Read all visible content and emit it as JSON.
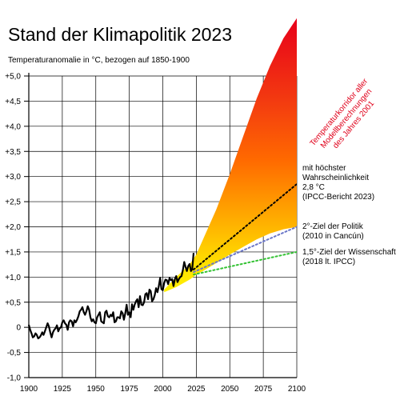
{
  "chart_data": {
    "type": "line",
    "title": "Stand der Klimapolitik 2023",
    "ylabel": "Temperaturanomalie in °C, bezogen auf 1850-1900",
    "xlabel": "",
    "xlim": [
      1900,
      2100
    ],
    "ylim": [
      -1.0,
      5.0
    ],
    "grid": true,
    "x_ticks": [
      1900,
      1925,
      1950,
      1975,
      2000,
      2025,
      2050,
      2075,
      2100
    ],
    "x_tick_labels": [
      "1900",
      "1925",
      "1950",
      "1975",
      "2000",
      "2025",
      "2050",
      "2075",
      "2100"
    ],
    "y_ticks": [
      -1.0,
      -0.5,
      0,
      0.5,
      1.0,
      1.5,
      2.0,
      2.5,
      3.0,
      3.5,
      4.0,
      4.5,
      5.0
    ],
    "y_tick_labels": [
      "-1,0",
      "-0,5",
      "0",
      "+0,5",
      "+1,0",
      "+1,5",
      "+2,0",
      "+2,5",
      "+3,0",
      "+3,5",
      "+4,0",
      "+4,5",
      "+5,0"
    ],
    "observed": {
      "x": [
        1900,
        1901,
        1902,
        1903,
        1904,
        1905,
        1906,
        1907,
        1908,
        1909,
        1910,
        1911,
        1912,
        1913,
        1914,
        1915,
        1916,
        1917,
        1918,
        1919,
        1920,
        1921,
        1922,
        1923,
        1924,
        1925,
        1926,
        1927,
        1928,
        1929,
        1930,
        1931,
        1932,
        1933,
        1934,
        1935,
        1936,
        1937,
        1938,
        1939,
        1940,
        1941,
        1942,
        1943,
        1944,
        1945,
        1946,
        1947,
        1948,
        1949,
        1950,
        1951,
        1952,
        1953,
        1954,
        1955,
        1956,
        1957,
        1958,
        1959,
        1960,
        1961,
        1962,
        1963,
        1964,
        1965,
        1966,
        1967,
        1968,
        1969,
        1970,
        1971,
        1972,
        1973,
        1974,
        1975,
        1976,
        1977,
        1978,
        1979,
        1980,
        1981,
        1982,
        1983,
        1984,
        1985,
        1986,
        1987,
        1988,
        1989,
        1990,
        1991,
        1992,
        1993,
        1994,
        1995,
        1996,
        1997,
        1998,
        1999,
        2000,
        2001,
        2002,
        2003,
        2004,
        2005,
        2006,
        2007,
        2008,
        2009,
        2010,
        2011,
        2012,
        2013,
        2014,
        2015,
        2016,
        2017,
        2018,
        2019,
        2020,
        2021,
        2022,
        2023
      ],
      "y": [
        0.05,
        -0.05,
        -0.12,
        -0.2,
        -0.18,
        -0.12,
        -0.15,
        -0.22,
        -0.2,
        -0.16,
        -0.1,
        -0.15,
        -0.08,
        0.0,
        0.08,
        0.02,
        -0.1,
        -0.2,
        -0.1,
        -0.05,
        -0.02,
        0.04,
        -0.08,
        -0.02,
        0.0,
        0.1,
        0.14,
        0.08,
        0.05,
        -0.05,
        0.1,
        0.14,
        0.12,
        0.02,
        0.14,
        0.1,
        0.15,
        0.22,
        0.32,
        0.35,
        0.4,
        0.3,
        0.25,
        0.32,
        0.42,
        0.35,
        0.2,
        0.12,
        0.16,
        0.1,
        0.08,
        0.2,
        0.25,
        0.3,
        0.12,
        0.1,
        0.08,
        0.3,
        0.33,
        0.22,
        0.2,
        0.25,
        0.22,
        0.3,
        0.1,
        0.12,
        0.2,
        0.2,
        0.18,
        0.32,
        0.28,
        0.15,
        0.28,
        0.45,
        0.25,
        0.3,
        0.2,
        0.46,
        0.35,
        0.45,
        0.52,
        0.56,
        0.4,
        0.62,
        0.45,
        0.44,
        0.5,
        0.66,
        0.68,
        0.56,
        0.75,
        0.72,
        0.52,
        0.56,
        0.64,
        0.78,
        0.7,
        0.82,
        0.98,
        0.76,
        0.74,
        0.88,
        0.95,
        0.94,
        0.86,
        0.98,
        0.94,
        0.96,
        0.82,
        0.96,
        1.02,
        0.9,
        0.96,
        1.0,
        1.02,
        1.14,
        1.3,
        1.2,
        1.12,
        1.22,
        1.26,
        1.12,
        1.16,
        1.48
      ]
    },
    "corridor": {
      "x": [
        2001,
        2010,
        2020,
        2025,
        2030,
        2040,
        2050,
        2060,
        2070,
        2080,
        2090,
        2100
      ],
      "lower": [
        0.7,
        0.8,
        0.95,
        1.05,
        1.12,
        1.28,
        1.45,
        1.6,
        1.75,
        1.87,
        1.95,
        2.0
      ],
      "upper": [
        0.75,
        1.0,
        1.25,
        1.45,
        1.75,
        2.35,
        3.05,
        3.8,
        4.55,
        5.2,
        5.75,
        6.15
      ]
    },
    "projections": [
      {
        "name": "mit höchster Wahrscheinlichkeit 2,8 °C (IPCC-Bericht 2023)",
        "x": [
          2023,
          2100
        ],
        "y": [
          1.15,
          2.85
        ],
        "color": "#000000"
      },
      {
        "name": "2°-Ziel der Politik (2010 in Cancún)",
        "x": [
          2023,
          2100
        ],
        "y": [
          1.1,
          2.0
        ],
        "color": "#6a76c8"
      },
      {
        "name": "1,5°-Ziel der Wissenschaft (2018 lt. IPCC)",
        "x": [
          2023,
          2100
        ],
        "y": [
          1.05,
          1.5
        ],
        "color": "#33c233"
      }
    ],
    "annotations": {
      "projection_28": [
        "mit höchster",
        "Wahrscheinlichkeit",
        "2,8 °C",
        "(IPCC-Bericht 2023)"
      ],
      "target_2": [
        "2°-Ziel der Politik",
        "(2010 in Cancún)"
      ],
      "target_15": [
        "1,5°-Ziel der Wissenschaft",
        "(2018 lt. IPCC)"
      ],
      "corridor_label": [
        "Temperaturkorridor aller",
        "Modellberechnungen",
        "des Jahres 2001"
      ]
    }
  }
}
